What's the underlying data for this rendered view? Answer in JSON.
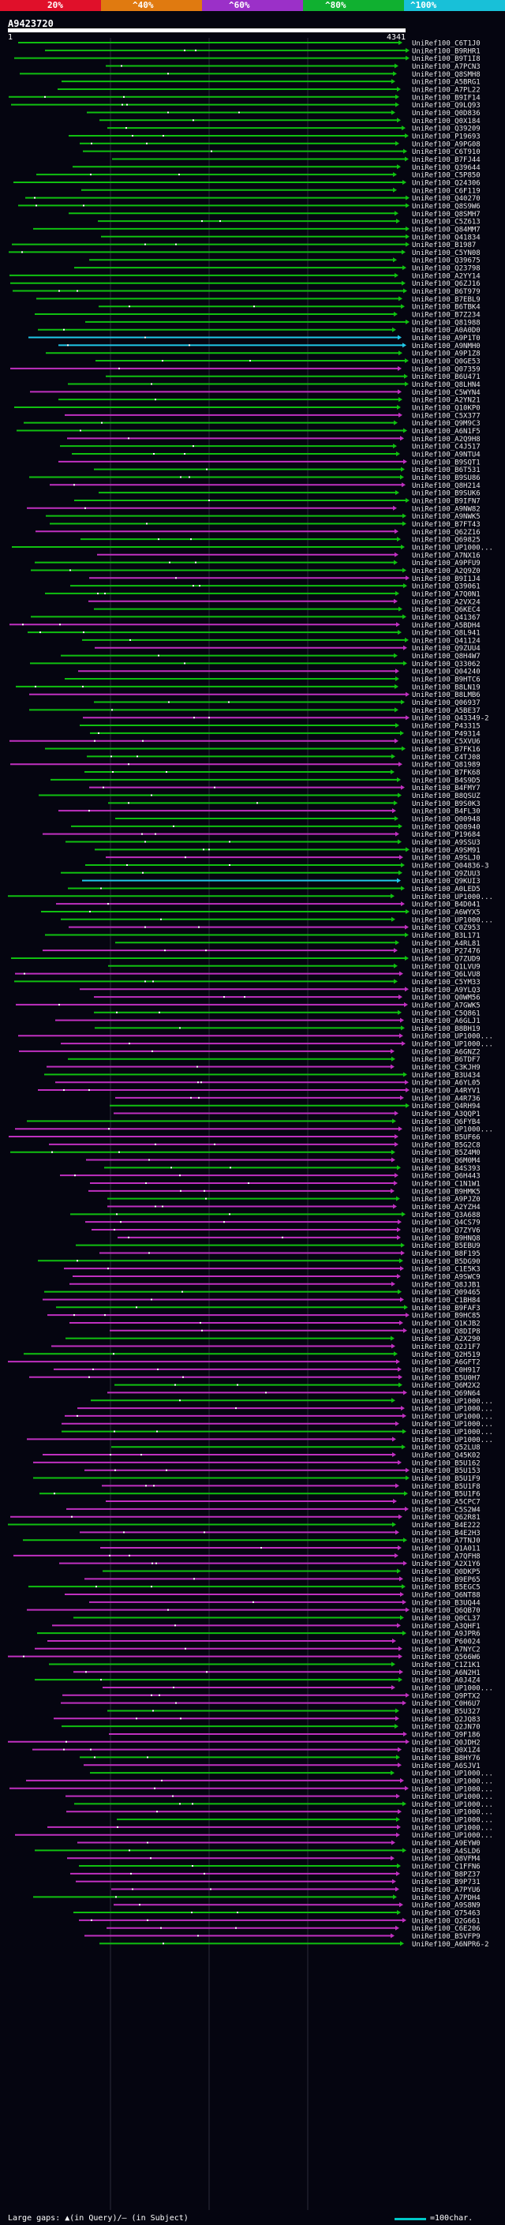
{
  "legend": {
    "labels": [
      "20%",
      "^40%",
      "^60%",
      "^80%",
      "^100%"
    ],
    "colors": [
      "#e0102a",
      "#e07a10",
      "#9b30c8",
      "#10b030",
      "#18c0d8"
    ]
  },
  "query": {
    "id": "A9423720",
    "start": "1",
    "end": "4341"
  },
  "colors": {
    "high": "#10c010",
    "mid": "#c030c0",
    "best": "#20c8e8",
    "gap": "#ffffff"
  },
  "hits": [
    "UniRef100_C6T1J0",
    "UniRef100_B9RHR1",
    "UniRef100_B9T1I8",
    "UniRef100_A7PCN3",
    "UniRef100_Q8SMH8",
    "UniRef100_A5BRG1",
    "UniRef100_A7PL22",
    "UniRef100_B9IF14",
    "UniRef100_Q9LQ93",
    "UniRef100_Q0D836",
    "UniRef100_Q0X184",
    "UniRef100_Q39209",
    "UniRef100_P19693",
    "UniRef100_A9PG08",
    "UniRef100_C6T910",
    "UniRef100_B7FJ44",
    "UniRef100_Q39644",
    "UniRef100_C5P850",
    "UniRef100_Q24306",
    "UniRef100_C6F119",
    "UniRef100_Q40270",
    "UniRef100_Q8S9W6",
    "UniRef100_Q8SMH7",
    "UniRef100_C5Z613",
    "UniRef100_Q84MM7",
    "UniRef100_Q41834",
    "UniRef100_B1987",
    "UniRef100_C5YN08",
    "UniRef100_Q39675",
    "UniRef100_Q23798",
    "UniRef100_A2YY14",
    "UniRef100_Q6ZJ16",
    "UniRef100_B6T979",
    "UniRef100_B7EBL9",
    "UniRef100_B6TBK4",
    "UniRef100_B7Z234",
    "UniRef100_Q81988",
    "UniRef100_A0A0D0",
    "UniRef100_A9P1T0",
    "UniRef100_A9NMH0",
    "UniRef100_A9P1Z8",
    "UniRef100_Q0GE53",
    "UniRef100_Q07359",
    "UniRef100_B6U471",
    "UniRef100_Q8LHN4",
    "UniRef100_C5WYN4",
    "UniRef100_A2YN21",
    "UniRef100_Q10KP0",
    "UniRef100_C5X377",
    "UniRef100_Q9M9C3",
    "UniRef100_A6N1F5",
    "UniRef100_A2Q9H8",
    "UniRef100_C4J517",
    "UniRef100_A9NTU4",
    "UniRef100_B9SQT1",
    "UniRef100_B6T531",
    "UniRef100_B9SU86",
    "UniRef100_Q8H214",
    "UniRef100_B9SUK6",
    "UniRef100_B9IFN7",
    "UniRef100_A9NW82",
    "UniRef100_A9NWK5",
    "UniRef100_B7FT43",
    "UniRef100_Q62Z16",
    "UniRef100_Q69825",
    "UniRef100_UP1000...",
    "UniRef100_A7NX16",
    "UniRef100_A9PFU9",
    "UniRef100_A2Q9Z0",
    "UniRef100_B9I1J4",
    "UniRef100_Q39061",
    "UniRef100_A7Q0N1",
    "UniRef100_A2VX24",
    "UniRef100_Q6KEC4",
    "UniRef100_Q41367",
    "UniRef100_A5BDH4",
    "UniRef100_Q8L941",
    "UniRef100_Q41124",
    "UniRef100_Q9ZUU4",
    "UniRef100_Q8H4W7",
    "UniRef100_Q33062",
    "UniRef100_Q04240",
    "UniRef100_B9HTC6",
    "UniRef100_B8LN19",
    "UniRef100_B8LMB6",
    "UniRef100_Q06937",
    "UniRef100_A5BE37",
    "UniRef100_Q43349-2",
    "UniRef100_P43315",
    "UniRef100_P49314",
    "UniRef100_C5XVU6",
    "UniRef100_B7FK16",
    "UniRef100_C4TJ08",
    "UniRef100_Q81989",
    "UniRef100_B7FK68",
    "UniRef100_B4S9D5",
    "UniRef100_B4FMY7",
    "UniRef100_B8QSUZ",
    "UniRef100_B9S0K3",
    "UniRef100_B4FL30",
    "UniRef100_Q00948",
    "UniRef100_Q08940",
    "UniRef100_P19684",
    "UniRef100_A9SSU3",
    "UniRef100_A9SM91",
    "UniRef100_A9SLJ0",
    "UniRef100_Q04836-3",
    "UniRef100_Q9ZUU3",
    "UniRef100_Q9KUI3",
    "UniRef100_A0LED5",
    "UniRef100_UP1000...",
    "UniRef100_B4D041",
    "UniRef100_A6WYX5",
    "UniRef100_UP1000...",
    "UniRef100_C0Z953",
    "UniRef100_B3L171",
    "UniRef100_A4RL81",
    "UniRef100_P27476",
    "UniRef100_Q7ZUD9",
    "UniRef100_Q1LVU9",
    "UniRef100_Q6LVU8",
    "UniRef100_C5YM33",
    "UniRef100_A9YLQ3",
    "UniRef100_Q0WM56",
    "UniRef100_A7GWK5",
    "UniRef100_C5Q861",
    "UniRef100_A6GLJ1",
    "UniRef100_B8BH19",
    "UniRef100_UP1000...",
    "UniRef100_UP1000...",
    "UniRef100_A6GNZ2",
    "UniRef100_B6TDF7",
    "UniRef100_C3KJH9",
    "UniRef100_B3U434",
    "UniRef100_A6YL05",
    "UniRef100_A4RYV1",
    "UniRef100_A4R736",
    "UniRef100_Q4RH94",
    "UniRef100_A3QQP1",
    "UniRef100_Q6FYB4",
    "UniRef100_UP1000...",
    "UniRef100_B5UF66",
    "UniRef100_B5G2C8",
    "UniRef100_B5Z4M0",
    "UniRef100_Q6M0M4",
    "UniRef100_B4S393",
    "UniRef100_Q6H443",
    "UniRef100_C1N1W1",
    "UniRef100_B9HMK5",
    "UniRef100_A9PJZ0",
    "UniRef100_A2YZH4",
    "UniRef100_Q3A688",
    "UniRef100_Q4CS79",
    "UniRef100_Q7ZYV6",
    "UniRef100_B9HNQ8",
    "UniRef100_B5EBU9",
    "UniRef100_B8F195",
    "UniRef100_B5DG90",
    "UniRef100_C1E5K3",
    "UniRef100_A9SWC9",
    "UniRef100_Q8JJB1",
    "UniRef100_Q09465",
    "UniRef100_C1BH84",
    "UniRef100_B9FAF3",
    "UniRef100_B9HC85",
    "UniRef100_Q1KJB2",
    "UniRef100_Q8DIP8",
    "UniRef100_A2X290",
    "UniRef100_Q2J1F7",
    "UniRef100_Q2H519",
    "UniRef100_A6GFT2",
    "UniRef100_C0H917",
    "UniRef100_B5U0H7",
    "UniRef100_Q6M2X2",
    "UniRef100_Q69N64",
    "UniRef100_UP1000...",
    "UniRef100_UP1000...",
    "UniRef100_UP1000...",
    "UniRef100_UP1000...",
    "UniRef100_UP1000...",
    "UniRef100_UP1000...",
    "UniRef100_Q52LU8",
    "UniRef100_Q45K02",
    "UniRef100_B5U162",
    "UniRef100_B5U153",
    "UniRef100_B5U1F9",
    "UniRef100_B5U1F8",
    "UniRef100_B5U1F6",
    "UniRef100_A5CPC7",
    "UniRef100_C5S2W4",
    "UniRef100_Q62R81",
    "UniRef100_B4E222",
    "UniRef100_B4E2H3",
    "UniRef100_A7TNJ0",
    "UniRef100_Q1A011",
    "UniRef100_A7QFH8",
    "UniRef100_A2X1Y6",
    "UniRef100_Q0DKP5",
    "UniRef100_B9EP65",
    "UniRef100_B5EGC5",
    "UniRef100_Q6NT88",
    "UniRef100_B3UQ44",
    "UniRef100_Q6QB70",
    "UniRef100_Q0CL37",
    "UniRef100_A3QHF1",
    "UniRef100_A9JPR6",
    "UniRef100_P60024",
    "UniRef100_A7NYC2",
    "UniRef100_Q566W6",
    "UniRef100_C1Z1K1",
    "UniRef100_A6N2H1",
    "UniRef100_A0J4Z4",
    "UniRef100_UP1000...",
    "UniRef100_Q9PTX2",
    "UniRef100_C0H6U7",
    "UniRef100_B5U327",
    "UniRef100_Q2JQ83",
    "UniRef100_Q2JN70",
    "UniRef100_Q9F186",
    "UniRef100_Q0JDH2",
    "UniRef100_Q0X1Z4",
    "UniRef100_B8HY76",
    "UniRef100_A6SJV1",
    "UniRef100_UP1000...",
    "UniRef100_UP1000...",
    "UniRef100_UP1000...",
    "UniRef100_UP1000...",
    "UniRef100_UP1000...",
    "UniRef100_UP1000...",
    "UniRef100_UP1000...",
    "UniRef100_UP1000...",
    "UniRef100_UP1000...",
    "UniRef100_A9EYW0",
    "UniRef100_A4SLD6",
    "UniRef100_Q8VFM4",
    "UniRef100_C1FFN6",
    "UniRef100_B8PZ37",
    "UniRef100_B9P731",
    "UniRef100_A7PYU6",
    "UniRef100_A7PDH4",
    "UniRef100_A9S8N9",
    "UniRef100_Q75463",
    "UniRef100_Q2G661",
    "UniRef100_C6E206",
    "UniRef100_B5VFP9",
    "UniRef100_A6NPR6-2"
  ],
  "footer": {
    "text": "Large gaps: ▲(in Query)/— (in Subject)",
    "scale": "=100char."
  }
}
